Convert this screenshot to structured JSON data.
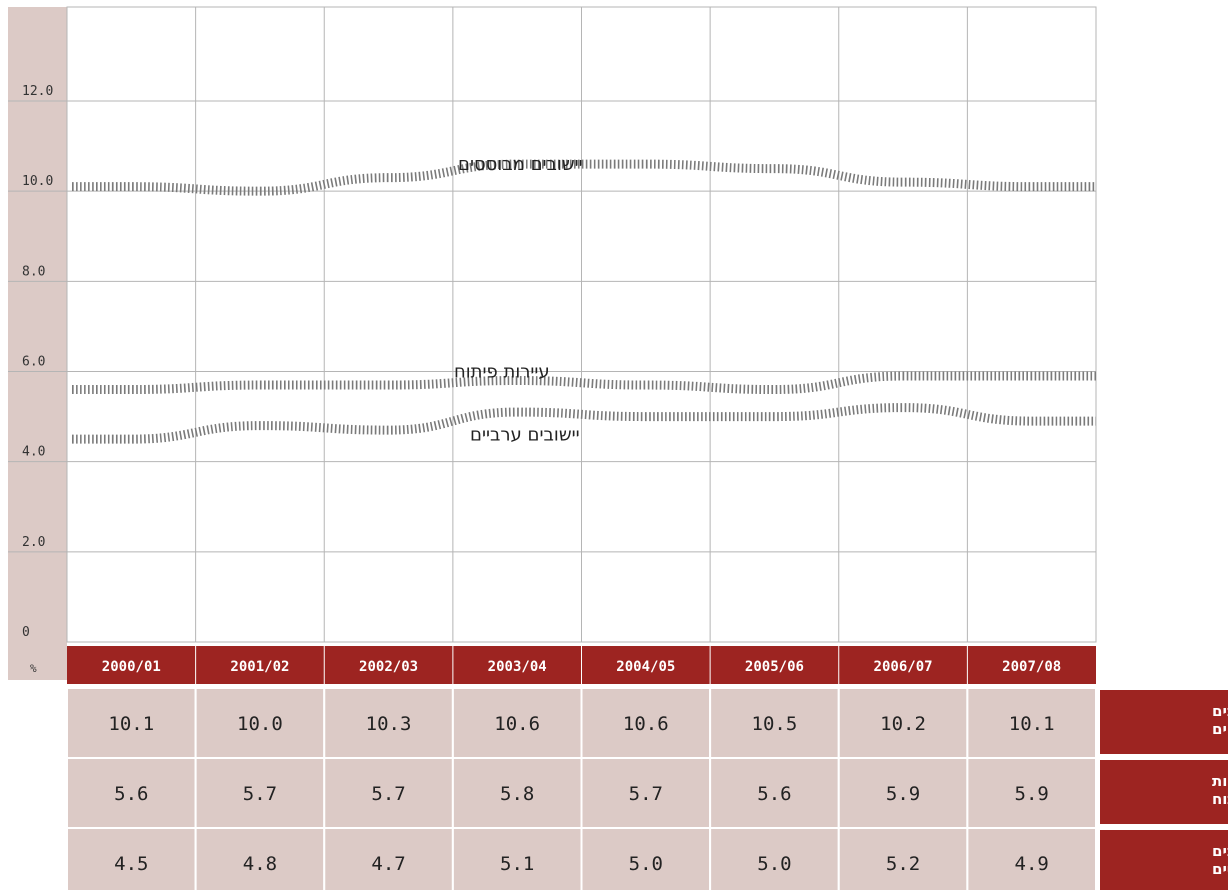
{
  "chart_data": {
    "type": "line",
    "unit_label": "%",
    "categories": [
      "2000/01",
      "2001/02",
      "2002/03",
      "2003/04",
      "2004/05",
      "2005/06",
      "2006/07",
      "2007/08"
    ],
    "y_ticks": [
      "0",
      "2.0",
      "4.0",
      "6.0",
      "8.0",
      "10.0",
      "12.0"
    ],
    "ylim": [
      0,
      14
    ],
    "grid": true,
    "series": [
      {
        "name": "יישובים מבוססים",
        "values": [
          10.1,
          10.0,
          10.3,
          10.6,
          10.6,
          10.5,
          10.2,
          10.1
        ],
        "color": "#7a7a7a"
      },
      {
        "name": "עיירות פיתוח",
        "values": [
          5.6,
          5.7,
          5.7,
          5.8,
          5.7,
          5.6,
          5.9,
          5.9
        ],
        "color": "#7a7a7a"
      },
      {
        "name": "יישובים ערביים",
        "values": [
          4.5,
          4.8,
          4.7,
          5.1,
          5.0,
          5.0,
          5.2,
          4.9
        ],
        "color": "#7a7a7a"
      }
    ],
    "table": {
      "row_labels": [
        [
          "יישובים",
          "מבוססים"
        ],
        [
          "עיירות",
          "פיתוח"
        ],
        [
          "יישובים",
          "ערביים"
        ]
      ],
      "rows": [
        [
          "10.1",
          "10.0",
          "10.3",
          "10.6",
          "10.6",
          "10.5",
          "10.2",
          "10.1"
        ],
        [
          "5.6",
          "5.7",
          "5.7",
          "5.8",
          "5.7",
          "5.6",
          "5.9",
          "5.9"
        ],
        [
          "4.5",
          "4.8",
          "4.7",
          "5.1",
          "5.0",
          "5.0",
          "5.2",
          "4.9"
        ]
      ]
    }
  },
  "colors": {
    "accent": "#9d2421",
    "cell_bg": "#dccac6",
    "grid": "#b5b5b5"
  }
}
